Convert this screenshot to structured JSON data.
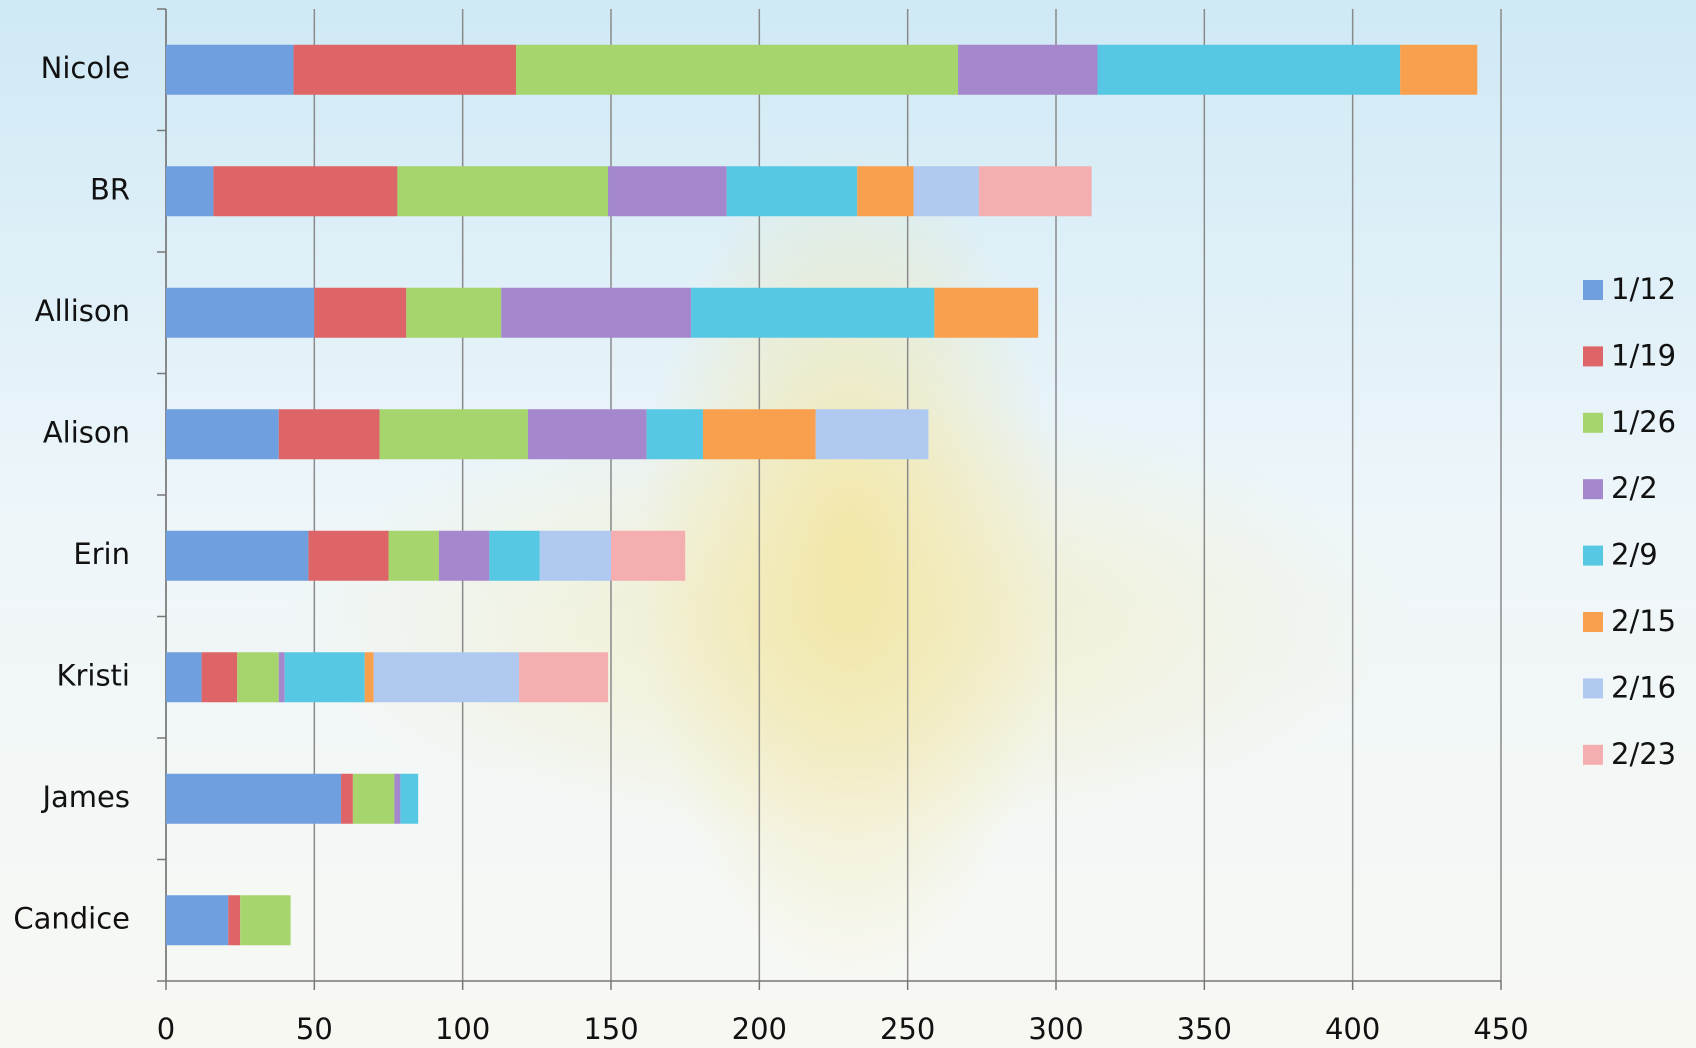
{
  "chart_data": {
    "type": "stacked_bar_horizontal",
    "categories": [
      "Nicole",
      "BR",
      "Allison",
      "Alison",
      "Erin",
      "Kristi",
      "James",
      "Candice"
    ],
    "series": [
      {
        "name": "1/12",
        "color": "#6f9fdf",
        "values": [
          43,
          16,
          50,
          38,
          48,
          12,
          59,
          21
        ]
      },
      {
        "name": "1/19",
        "color": "#de6567",
        "values": [
          75,
          62,
          31,
          34,
          27,
          12,
          4,
          4
        ]
      },
      {
        "name": "1/26",
        "color": "#a6d46d",
        "values": [
          149,
          71,
          32,
          50,
          17,
          14,
          14,
          17
        ]
      },
      {
        "name": "2/2",
        "color": "#a587cd",
        "values": [
          47,
          40,
          64,
          40,
          17,
          2,
          2,
          0
        ]
      },
      {
        "name": "2/9",
        "color": "#56c8e4",
        "values": [
          102,
          44,
          82,
          19,
          17,
          27,
          6,
          0
        ]
      },
      {
        "name": "2/15",
        "color": "#f9a04e",
        "values": [
          26,
          19,
          35,
          38,
          0,
          3,
          0,
          0
        ]
      },
      {
        "name": "2/16",
        "color": "#b0c9f0",
        "values": [
          0,
          22,
          0,
          38,
          24,
          49,
          0,
          0
        ]
      },
      {
        "name": "2/23",
        "color": "#f4aeb0",
        "values": [
          0,
          38,
          0,
          0,
          25,
          30,
          0,
          0
        ]
      }
    ],
    "xlim": [
      0,
      450
    ],
    "xticks": [
      0,
      50,
      100,
      150,
      200,
      250,
      300,
      350,
      400,
      450
    ],
    "grid": true,
    "legend": "right"
  }
}
